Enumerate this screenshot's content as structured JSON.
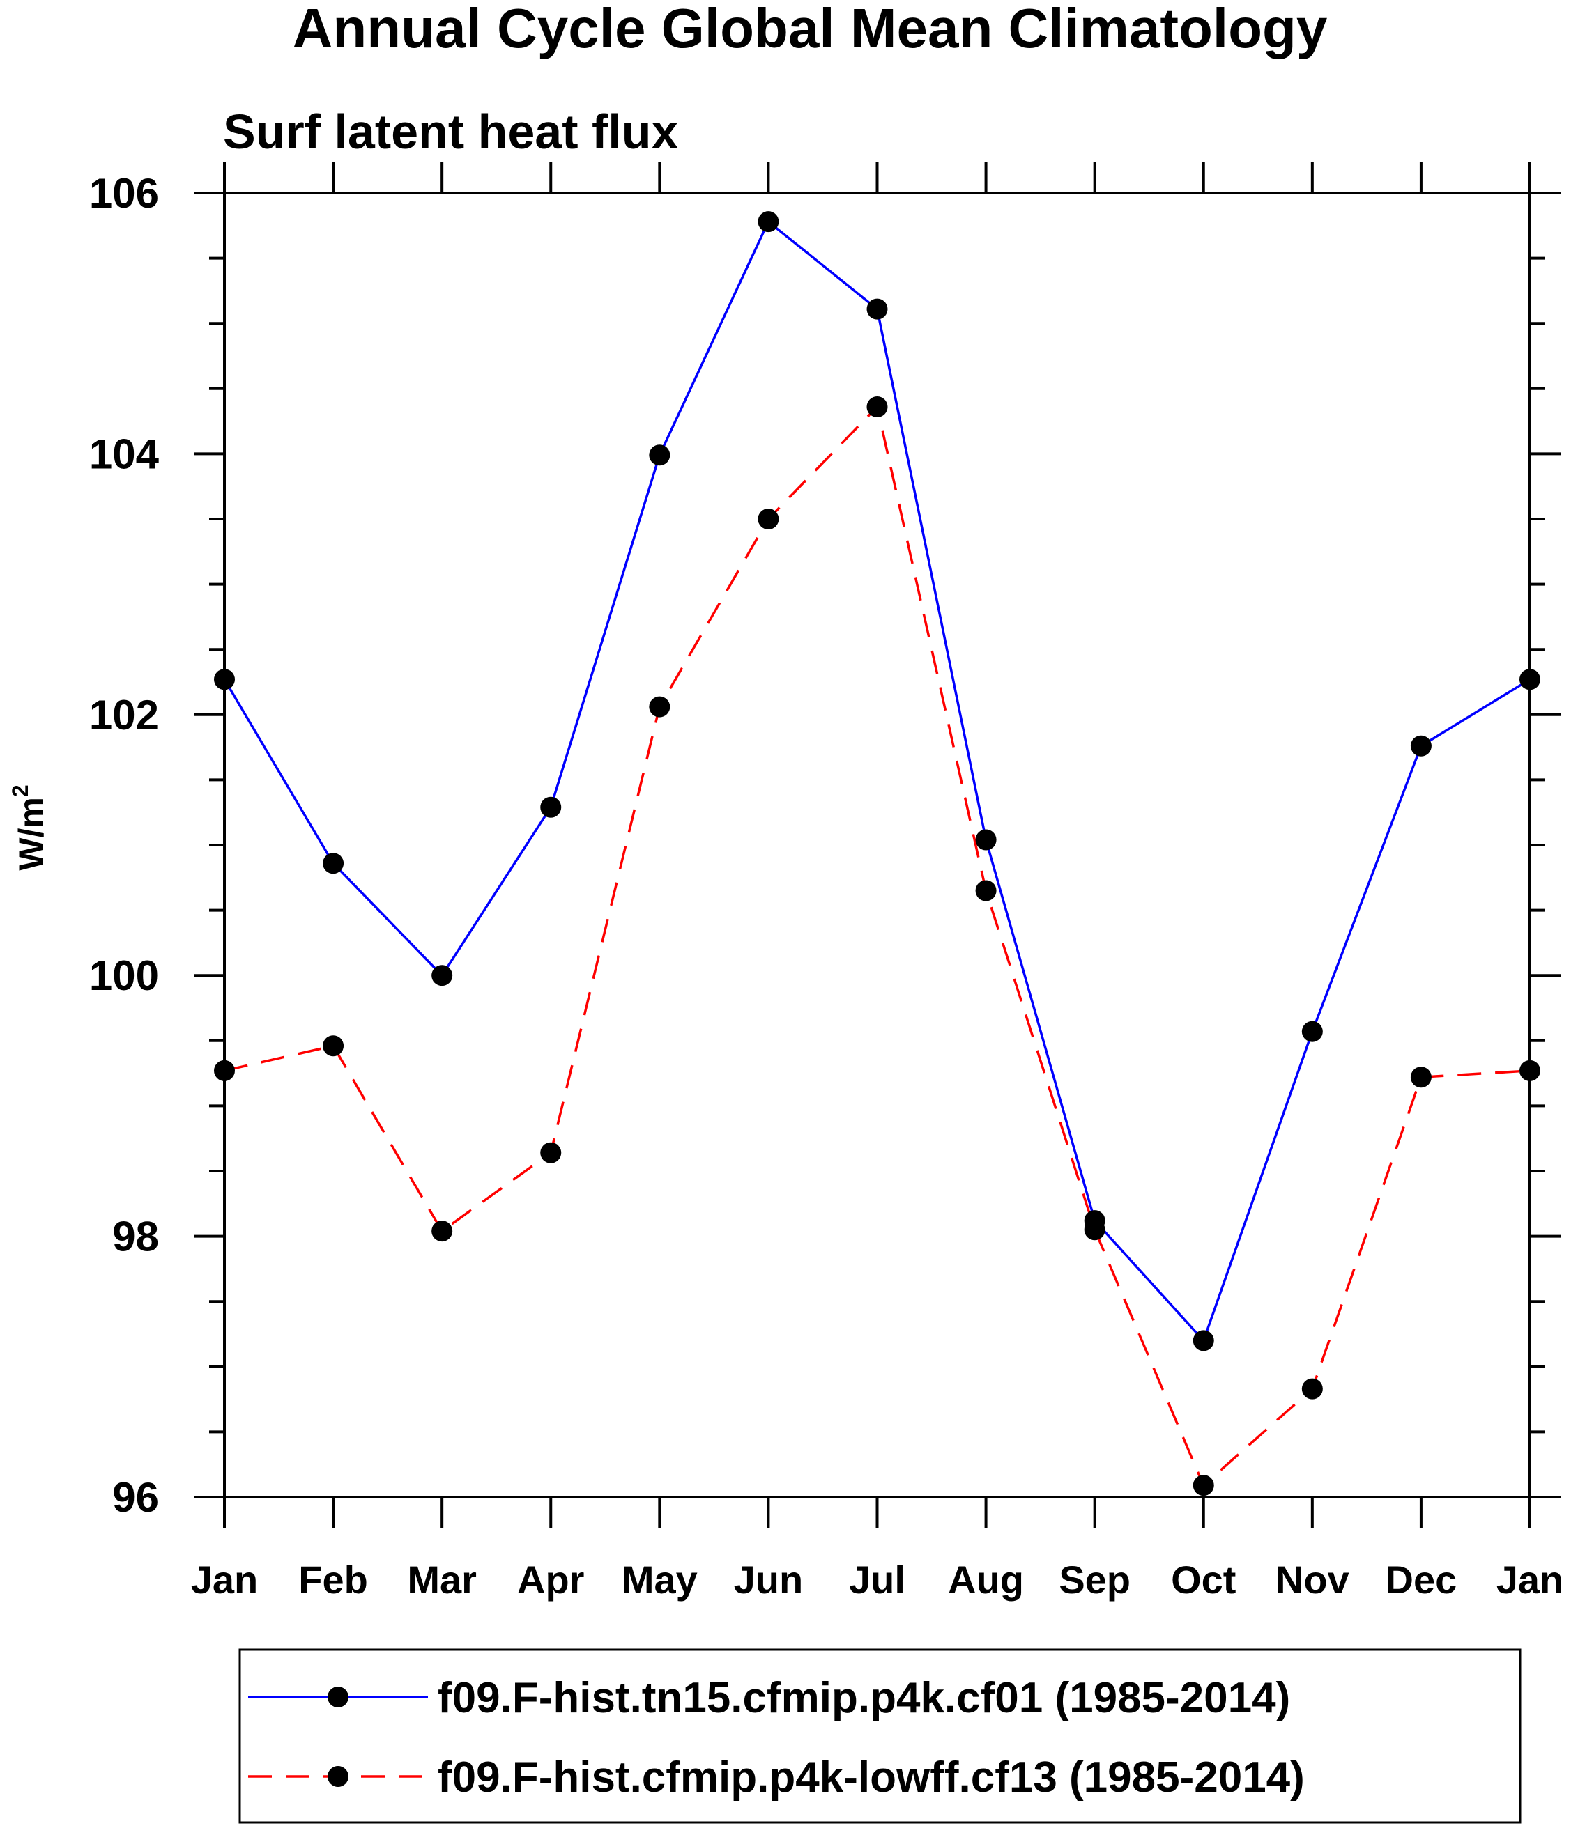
{
  "chart_data": {
    "type": "line",
    "title": "Annual Cycle Global Mean Climatology",
    "subtitle": "Surf latent heat flux",
    "ylabel_base": "W/m",
    "ylabel_sup": "2",
    "xlabel": "",
    "categories": [
      "Jan",
      "Feb",
      "Mar",
      "Apr",
      "May",
      "Jun",
      "Jul",
      "Aug",
      "Sep",
      "Oct",
      "Nov",
      "Dec",
      "Jan"
    ],
    "ylim": [
      96,
      106
    ],
    "yticks": [
      96,
      98,
      100,
      102,
      104,
      106
    ],
    "yminor_step": 0.5,
    "grid": false,
    "legend_position": "bottom",
    "series": [
      {
        "name": "f09.F-hist.tn15.cfmip.p4k.cf01 (1985-2014)",
        "color": "#0000ff",
        "dash": "solid",
        "marker": "filled-circle",
        "values": [
          102.27,
          100.86,
          100.0,
          101.29,
          103.99,
          105.78,
          105.11,
          101.04,
          98.12,
          97.2,
          99.57,
          101.76,
          102.27
        ]
      },
      {
        "name": "f09.F-hist.cfmip.p4k-lowff.cf13 (1985-2014)",
        "color": "#ff0000",
        "dash": "dashed",
        "marker": "filled-circle",
        "values": [
          99.27,
          99.46,
          98.04,
          98.64,
          102.06,
          103.5,
          104.36,
          100.65,
          98.05,
          96.09,
          96.83,
          99.22,
          99.27
        ]
      }
    ]
  }
}
